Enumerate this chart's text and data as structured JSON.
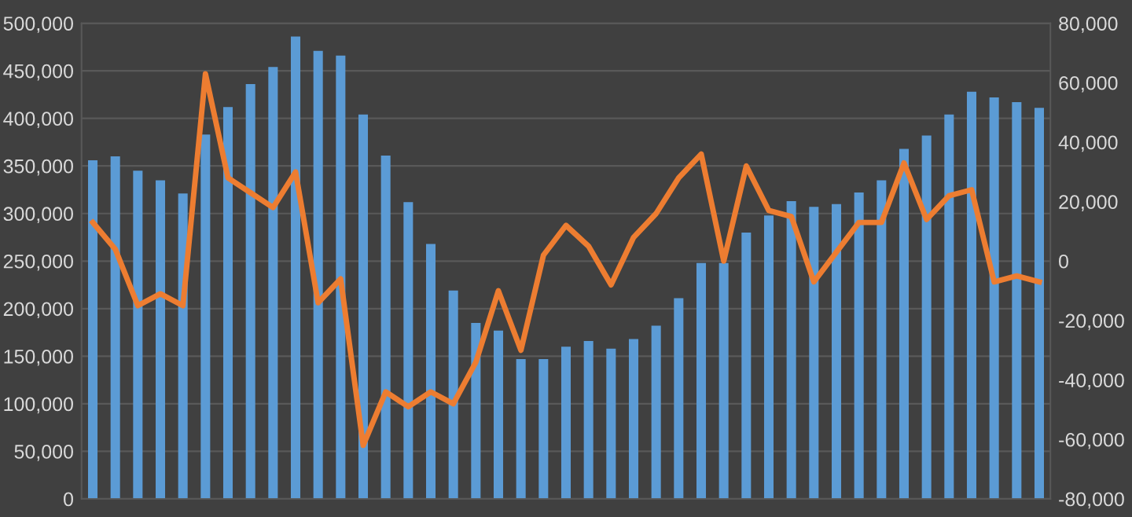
{
  "chart_data": {
    "type": "bar",
    "categories": [
      null,
      null,
      null,
      null,
      null,
      null,
      null,
      null,
      null,
      null,
      null,
      null,
      null,
      null,
      null,
      null,
      null,
      null,
      null,
      null,
      null,
      null,
      null,
      null,
      null,
      null,
      null,
      null,
      null,
      null,
      null,
      null,
      null,
      null,
      null,
      null,
      null,
      null,
      null,
      null,
      null,
      null,
      null
    ],
    "series": [
      {
        "color": "#5b9bd5",
        "values": [
          356000,
          360000,
          345000,
          335000,
          321000,
          383000,
          412000,
          436000,
          454000,
          486000,
          471000,
          466000,
          404000,
          361000,
          312000,
          268000,
          219000,
          185000,
          177000,
          147000,
          147000,
          160000,
          166000,
          158000,
          168000,
          182000,
          211000,
          248000,
          248000,
          280000,
          298000,
          313000,
          307000,
          310000,
          322000,
          335000,
          368000,
          382000,
          404000,
          428000,
          422000,
          417000,
          411000
        ]
      },
      {
        "type": "line",
        "axis": "y2",
        "color": "#ed7d31",
        "values": [
          13000,
          4000,
          -15000,
          -11000,
          -15000,
          63000,
          28000,
          23000,
          18000,
          30000,
          -14000,
          -6000,
          -62000,
          -44000,
          -49000,
          -44000,
          -48000,
          -34000,
          -10000,
          -30000,
          2000,
          12000,
          5000,
          -8000,
          8000,
          16000,
          28000,
          36000,
          0,
          32000,
          17000,
          15000,
          -7000,
          3000,
          13000,
          13000,
          33000,
          14000,
          22000,
          24000,
          -7000,
          -5000,
          -7000
        ]
      }
    ],
    "ylim": [
      0,
      500000
    ],
    "yticks": [
      {
        "value": 0,
        "label": "0"
      },
      {
        "value": 50000,
        "label": "50,000"
      },
      {
        "value": 100000,
        "label": "100,000"
      },
      {
        "value": 150000,
        "label": "150,000"
      },
      {
        "value": 200000,
        "label": "200,000"
      },
      {
        "value": 250000,
        "label": "250,000"
      },
      {
        "value": 300000,
        "label": "300,000"
      },
      {
        "value": 350000,
        "label": "350,000"
      },
      {
        "value": 400000,
        "label": "400,000"
      },
      {
        "value": 450000,
        "label": "450,000"
      },
      {
        "value": 500000,
        "label": "500,000"
      }
    ],
    "y2lim": [
      -80000,
      80000
    ],
    "y2ticks": [
      {
        "value": -80000,
        "label": "-80,000"
      },
      {
        "value": -60000,
        "label": "-60,000"
      },
      {
        "value": -40000,
        "label": "-40,000"
      },
      {
        "value": -20000,
        "label": "-20,000"
      },
      {
        "value": 0,
        "label": "0"
      },
      {
        "value": 20000,
        "label": "20,000"
      },
      {
        "value": 40000,
        "label": "40,000"
      },
      {
        "value": 60000,
        "label": "60,000"
      },
      {
        "value": 80000,
        "label": "80,000"
      }
    ],
    "grid": "y",
    "legend": false,
    "marker": "none",
    "line_style": "solid"
  }
}
